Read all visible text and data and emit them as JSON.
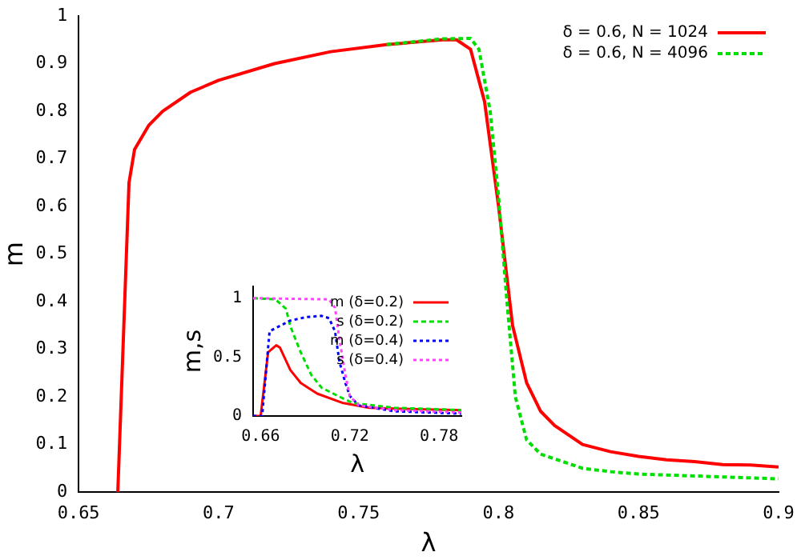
{
  "chart_data": [
    {
      "type": "line",
      "xlabel": "λ",
      "ylabel": "m",
      "xlim": [
        0.65,
        0.9
      ],
      "ylim": [
        0,
        1
      ],
      "xticks": [
        0.65,
        0.7,
        0.75,
        0.8,
        0.85,
        0.9
      ],
      "yticks": [
        0,
        0.1,
        0.2,
        0.3,
        0.4,
        0.5,
        0.6,
        0.7,
        0.8,
        0.9,
        1
      ],
      "grid": false,
      "legend": "top right",
      "marker": "none",
      "series": [
        {
          "name": "δ = 0.6, N = 1024",
          "color": "#ff0000",
          "line_style": "solid",
          "x": [
            0.664,
            0.668,
            0.67,
            0.675,
            0.68,
            0.69,
            0.7,
            0.72,
            0.74,
            0.76,
            0.78,
            0.785,
            0.79,
            0.795,
            0.8,
            0.805,
            0.81,
            0.815,
            0.82,
            0.83,
            0.84,
            0.85,
            0.86,
            0.87,
            0.88,
            0.89,
            0.9
          ],
          "values": [
            0,
            0.65,
            0.72,
            0.77,
            0.8,
            0.84,
            0.865,
            0.9,
            0.925,
            0.94,
            0.95,
            0.95,
            0.93,
            0.82,
            0.6,
            0.35,
            0.23,
            0.17,
            0.14,
            0.1,
            0.085,
            0.075,
            0.068,
            0.064,
            0.058,
            0.057,
            0.053
          ]
        },
        {
          "name": "δ = 0.6, N = 4096",
          "color": "#00dd00",
          "line_style": "dashed",
          "x": [
            0.76,
            0.78,
            0.79,
            0.793,
            0.797,
            0.8,
            0.803,
            0.806,
            0.81,
            0.815,
            0.82,
            0.83,
            0.84,
            0.85,
            0.87,
            0.9
          ],
          "values": [
            0.94,
            0.952,
            0.953,
            0.93,
            0.8,
            0.62,
            0.4,
            0.2,
            0.11,
            0.08,
            0.07,
            0.05,
            0.043,
            0.038,
            0.034,
            0.028
          ]
        }
      ]
    },
    {
      "type": "line",
      "xlabel": "λ",
      "ylabel": "m,s",
      "xlim": [
        0.655,
        0.795
      ],
      "ylim": [
        0,
        1.1
      ],
      "xticks": [
        0.66,
        0.72,
        0.78
      ],
      "yticks": [
        0,
        0.5,
        1
      ],
      "grid": false,
      "legend": "top right",
      "marker": "none",
      "series": [
        {
          "name": "m (δ=0.2)",
          "color": "#ff0000",
          "line_style": "solid",
          "x": [
            0.655,
            0.66,
            0.665,
            0.6705,
            0.673,
            0.68,
            0.687,
            0.698,
            0.7155,
            0.733,
            0.76,
            0.795
          ],
          "values": [
            0,
            0,
            0.54,
            0.6,
            0.58,
            0.39,
            0.28,
            0.19,
            0.11,
            0.07,
            0.06,
            0.05
          ]
        },
        {
          "name": "s (δ=0.2)",
          "color": "#00dd00",
          "line_style": "dashed",
          "x": [
            0.655,
            0.67,
            0.677,
            0.68,
            0.687,
            0.694,
            0.701,
            0.712,
            0.722,
            0.75,
            0.795
          ],
          "values": [
            1,
            0.99,
            0.91,
            0.76,
            0.54,
            0.35,
            0.24,
            0.17,
            0.11,
            0.07,
            0.05
          ]
        },
        {
          "name": "m (δ=0.4)",
          "color": "#0000ff",
          "line_style": "dotted",
          "x": [
            0.655,
            0.661,
            0.666,
            0.68,
            0.691,
            0.701,
            0.706,
            0.71,
            0.713,
            0.717,
            0.72,
            0.726,
            0.75,
            0.795
          ],
          "values": [
            0,
            0,
            0.72,
            0.81,
            0.84,
            0.85,
            0.83,
            0.72,
            0.46,
            0.28,
            0.17,
            0.09,
            0.04,
            0.02
          ]
        },
        {
          "name": "s (δ=0.4)",
          "color": "#ff44ff",
          "line_style": "dotted",
          "x": [
            0.655,
            0.706,
            0.71,
            0.713,
            0.717,
            0.72,
            0.726,
            0.75,
            0.795
          ],
          "values": [
            1,
            0.99,
            0.92,
            0.65,
            0.35,
            0.17,
            0.09,
            0.05,
            0.03
          ]
        }
      ]
    }
  ]
}
